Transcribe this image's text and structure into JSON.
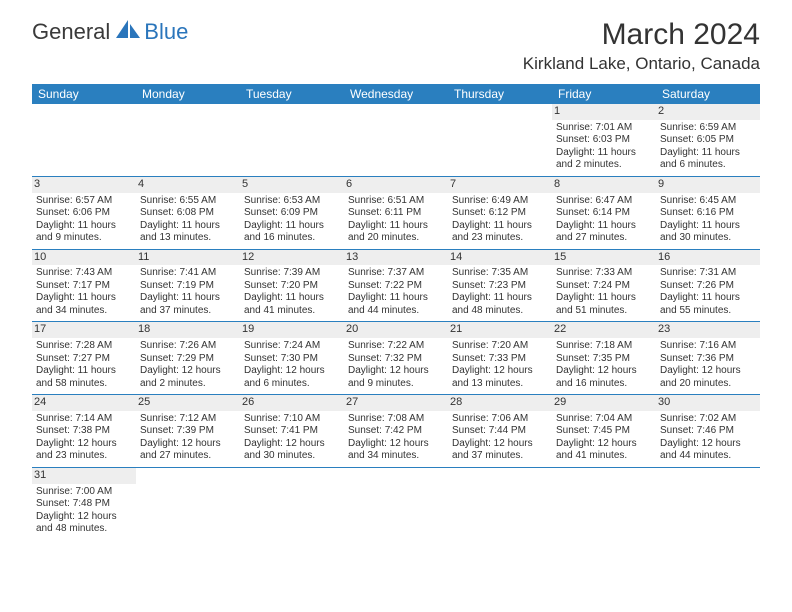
{
  "brand": {
    "text_part1": "General",
    "text_part2": "Blue",
    "color_general": "#3a3a3a",
    "color_blue": "#2a75bb",
    "sail_color": "#2a75bb"
  },
  "title": "March 2024",
  "location": "Kirkland Lake, Ontario, Canada",
  "header_bg": "#2a7fbf",
  "header_text_color": "#ffffff",
  "daynum_bg": "#eeeeee",
  "border_color": "#2a7fbf",
  "text_color": "#333333",
  "background_color": "#ffffff",
  "title_fontsize": 30,
  "location_fontsize": 17,
  "weekday_fontsize": 12,
  "cell_fontsize": 10,
  "weekdays": [
    "Sunday",
    "Monday",
    "Tuesday",
    "Wednesday",
    "Thursday",
    "Friday",
    "Saturday"
  ],
  "weeks": [
    [
      null,
      null,
      null,
      null,
      null,
      {
        "num": "1",
        "sunrise": "Sunrise: 7:01 AM",
        "sunset": "Sunset: 6:03 PM",
        "daylight": "Daylight: 11 hours and 2 minutes."
      },
      {
        "num": "2",
        "sunrise": "Sunrise: 6:59 AM",
        "sunset": "Sunset: 6:05 PM",
        "daylight": "Daylight: 11 hours and 6 minutes."
      }
    ],
    [
      {
        "num": "3",
        "sunrise": "Sunrise: 6:57 AM",
        "sunset": "Sunset: 6:06 PM",
        "daylight": "Daylight: 11 hours and 9 minutes."
      },
      {
        "num": "4",
        "sunrise": "Sunrise: 6:55 AM",
        "sunset": "Sunset: 6:08 PM",
        "daylight": "Daylight: 11 hours and 13 minutes."
      },
      {
        "num": "5",
        "sunrise": "Sunrise: 6:53 AM",
        "sunset": "Sunset: 6:09 PM",
        "daylight": "Daylight: 11 hours and 16 minutes."
      },
      {
        "num": "6",
        "sunrise": "Sunrise: 6:51 AM",
        "sunset": "Sunset: 6:11 PM",
        "daylight": "Daylight: 11 hours and 20 minutes."
      },
      {
        "num": "7",
        "sunrise": "Sunrise: 6:49 AM",
        "sunset": "Sunset: 6:12 PM",
        "daylight": "Daylight: 11 hours and 23 minutes."
      },
      {
        "num": "8",
        "sunrise": "Sunrise: 6:47 AM",
        "sunset": "Sunset: 6:14 PM",
        "daylight": "Daylight: 11 hours and 27 minutes."
      },
      {
        "num": "9",
        "sunrise": "Sunrise: 6:45 AM",
        "sunset": "Sunset: 6:16 PM",
        "daylight": "Daylight: 11 hours and 30 minutes."
      }
    ],
    [
      {
        "num": "10",
        "sunrise": "Sunrise: 7:43 AM",
        "sunset": "Sunset: 7:17 PM",
        "daylight": "Daylight: 11 hours and 34 minutes."
      },
      {
        "num": "11",
        "sunrise": "Sunrise: 7:41 AM",
        "sunset": "Sunset: 7:19 PM",
        "daylight": "Daylight: 11 hours and 37 minutes."
      },
      {
        "num": "12",
        "sunrise": "Sunrise: 7:39 AM",
        "sunset": "Sunset: 7:20 PM",
        "daylight": "Daylight: 11 hours and 41 minutes."
      },
      {
        "num": "13",
        "sunrise": "Sunrise: 7:37 AM",
        "sunset": "Sunset: 7:22 PM",
        "daylight": "Daylight: 11 hours and 44 minutes."
      },
      {
        "num": "14",
        "sunrise": "Sunrise: 7:35 AM",
        "sunset": "Sunset: 7:23 PM",
        "daylight": "Daylight: 11 hours and 48 minutes."
      },
      {
        "num": "15",
        "sunrise": "Sunrise: 7:33 AM",
        "sunset": "Sunset: 7:24 PM",
        "daylight": "Daylight: 11 hours and 51 minutes."
      },
      {
        "num": "16",
        "sunrise": "Sunrise: 7:31 AM",
        "sunset": "Sunset: 7:26 PM",
        "daylight": "Daylight: 11 hours and 55 minutes."
      }
    ],
    [
      {
        "num": "17",
        "sunrise": "Sunrise: 7:28 AM",
        "sunset": "Sunset: 7:27 PM",
        "daylight": "Daylight: 11 hours and 58 minutes."
      },
      {
        "num": "18",
        "sunrise": "Sunrise: 7:26 AM",
        "sunset": "Sunset: 7:29 PM",
        "daylight": "Daylight: 12 hours and 2 minutes."
      },
      {
        "num": "19",
        "sunrise": "Sunrise: 7:24 AM",
        "sunset": "Sunset: 7:30 PM",
        "daylight": "Daylight: 12 hours and 6 minutes."
      },
      {
        "num": "20",
        "sunrise": "Sunrise: 7:22 AM",
        "sunset": "Sunset: 7:32 PM",
        "daylight": "Daylight: 12 hours and 9 minutes."
      },
      {
        "num": "21",
        "sunrise": "Sunrise: 7:20 AM",
        "sunset": "Sunset: 7:33 PM",
        "daylight": "Daylight: 12 hours and 13 minutes."
      },
      {
        "num": "22",
        "sunrise": "Sunrise: 7:18 AM",
        "sunset": "Sunset: 7:35 PM",
        "daylight": "Daylight: 12 hours and 16 minutes."
      },
      {
        "num": "23",
        "sunrise": "Sunrise: 7:16 AM",
        "sunset": "Sunset: 7:36 PM",
        "daylight": "Daylight: 12 hours and 20 minutes."
      }
    ],
    [
      {
        "num": "24",
        "sunrise": "Sunrise: 7:14 AM",
        "sunset": "Sunset: 7:38 PM",
        "daylight": "Daylight: 12 hours and 23 minutes."
      },
      {
        "num": "25",
        "sunrise": "Sunrise: 7:12 AM",
        "sunset": "Sunset: 7:39 PM",
        "daylight": "Daylight: 12 hours and 27 minutes."
      },
      {
        "num": "26",
        "sunrise": "Sunrise: 7:10 AM",
        "sunset": "Sunset: 7:41 PM",
        "daylight": "Daylight: 12 hours and 30 minutes."
      },
      {
        "num": "27",
        "sunrise": "Sunrise: 7:08 AM",
        "sunset": "Sunset: 7:42 PM",
        "daylight": "Daylight: 12 hours and 34 minutes."
      },
      {
        "num": "28",
        "sunrise": "Sunrise: 7:06 AM",
        "sunset": "Sunset: 7:44 PM",
        "daylight": "Daylight: 12 hours and 37 minutes."
      },
      {
        "num": "29",
        "sunrise": "Sunrise: 7:04 AM",
        "sunset": "Sunset: 7:45 PM",
        "daylight": "Daylight: 12 hours and 41 minutes."
      },
      {
        "num": "30",
        "sunrise": "Sunrise: 7:02 AM",
        "sunset": "Sunset: 7:46 PM",
        "daylight": "Daylight: 12 hours and 44 minutes."
      }
    ],
    [
      {
        "num": "31",
        "sunrise": "Sunrise: 7:00 AM",
        "sunset": "Sunset: 7:48 PM",
        "daylight": "Daylight: 12 hours and 48 minutes."
      },
      null,
      null,
      null,
      null,
      null,
      null
    ]
  ]
}
